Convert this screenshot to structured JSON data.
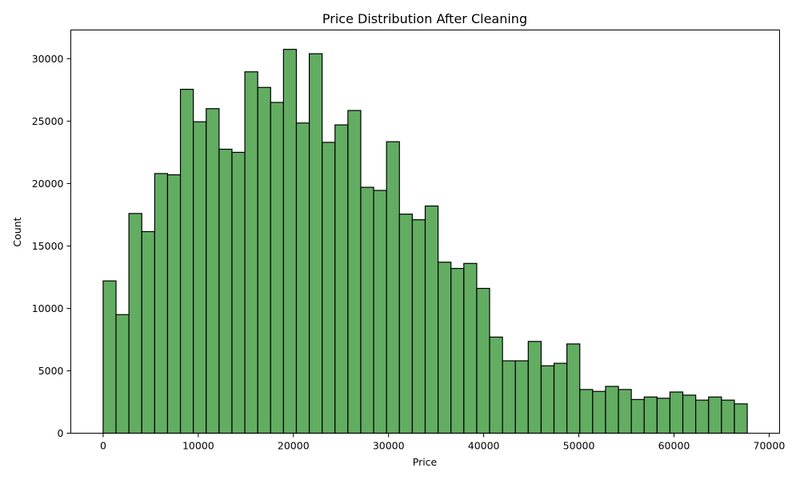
{
  "chart_data": {
    "type": "bar",
    "subtype": "histogram",
    "title": "Price Distribution After Cleaning",
    "xlabel": "Price",
    "ylabel": "Count",
    "xlim": [
      -3400,
      71100
    ],
    "ylim": [
      0,
      32300
    ],
    "xticks": [
      0,
      10000,
      20000,
      30000,
      40000,
      50000,
      60000,
      70000
    ],
    "yticks": [
      0,
      5000,
      10000,
      15000,
      20000,
      25000,
      30000
    ],
    "bin_start": 0,
    "bin_width": 1354,
    "bar_color": "#62ad62",
    "edge_color": "#000000",
    "grid": false,
    "counts": [
      12200,
      9500,
      17600,
      16150,
      20800,
      20700,
      27550,
      24950,
      26000,
      22750,
      22500,
      28950,
      27700,
      26500,
      30750,
      24850,
      30400,
      23300,
      24700,
      25850,
      19700,
      19450,
      23350,
      17550,
      17100,
      18200,
      13700,
      13200,
      13600,
      11600,
      7700,
      5800,
      5800,
      7350,
      5400,
      5600,
      7150,
      3500,
      3350,
      3750,
      3500,
      2700,
      2900,
      2800,
      3300,
      3050,
      2650,
      2900,
      2650,
      2350
    ]
  }
}
